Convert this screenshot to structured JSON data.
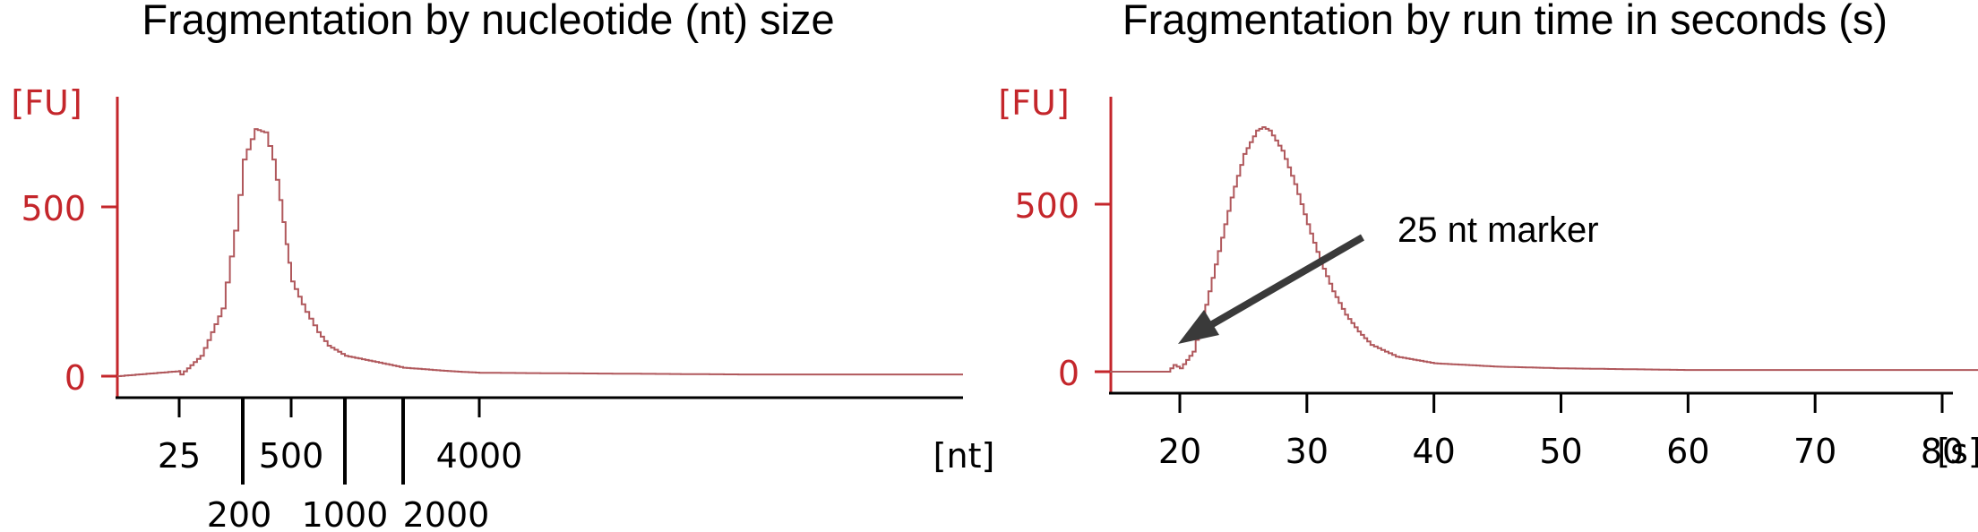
{
  "colors": {
    "axis_y": "#c4262b",
    "axis_x": "#000000",
    "trace": "#b0585c",
    "arrow": "#3a3a3a"
  },
  "chart_data": [
    {
      "type": "line",
      "title": "Fragmentation by nucleotide (nt) size",
      "ylabel": "[FU]",
      "xlabel": "[nt]",
      "y_ticks": [
        "500",
        "0"
      ],
      "y_tick_values": [
        500,
        0
      ],
      "ylim": [
        0,
        800
      ],
      "x_ticks_upper": [
        "25",
        "500",
        "4000"
      ],
      "x_ticks_lower": [
        "200",
        "1000",
        "2000"
      ],
      "x_scale": "size ladder (nt)",
      "series": [
        {
          "x": [
            20,
            25,
            26,
            50,
            100,
            150,
            200,
            250,
            300,
            350,
            400,
            450,
            500,
            600,
            700,
            800,
            1000,
            1500,
            2000,
            3000,
            4000,
            5000,
            6000
          ],
          "values": [
            0,
            15,
            5,
            60,
            200,
            430,
            640,
            730,
            720,
            640,
            520,
            390,
            280,
            190,
            130,
            90,
            60,
            40,
            25,
            15,
            10,
            5,
            5
          ]
        }
      ],
      "grid": false
    },
    {
      "type": "line",
      "title": "Fragmentation by run time in seconds (s)",
      "ylabel": "[FU]",
      "xlabel": "[s]",
      "y_ticks": [
        "500",
        "0"
      ],
      "y_tick_values": [
        500,
        0
      ],
      "ylim": [
        0,
        800
      ],
      "x_ticks": [
        "20",
        "30",
        "40",
        "50",
        "60",
        "70",
        "80"
      ],
      "x_tick_values": [
        20,
        30,
        40,
        50,
        60,
        70,
        80
      ],
      "xlim": [
        14.5,
        83
      ],
      "series": [
        {
          "x": [
            14.5,
            19,
            19.5,
            20,
            21,
            22,
            23,
            24,
            25,
            26,
            26.5,
            27,
            28,
            29,
            30,
            31,
            32,
            33,
            34,
            35,
            37,
            40,
            45,
            50,
            60,
            63,
            65,
            70,
            83
          ],
          "values": [
            0,
            0,
            20,
            10,
            60,
            200,
            360,
            520,
            650,
            720,
            730,
            720,
            660,
            560,
            440,
            330,
            240,
            170,
            120,
            80,
            45,
            25,
            15,
            10,
            5,
            5,
            5,
            5,
            5
          ]
        }
      ],
      "annotations": [
        {
          "text": "25 nt marker",
          "x": 19.5,
          "y": 40
        }
      ],
      "grid": false
    }
  ]
}
